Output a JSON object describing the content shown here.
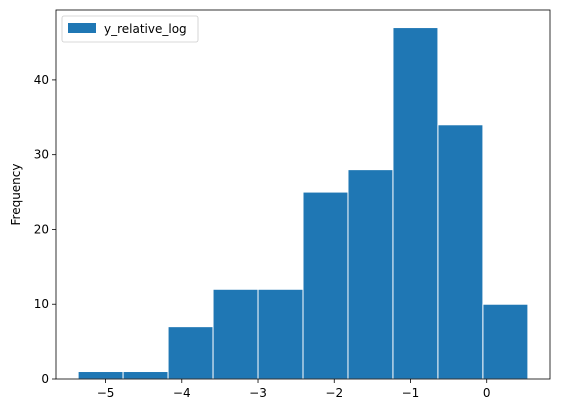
{
  "chart_data": {
    "type": "bar",
    "subtype": "histogram",
    "bins": [
      {
        "x0": -5.36,
        "x1": -4.77,
        "count": 1
      },
      {
        "x0": -4.77,
        "x1": -4.18,
        "count": 1
      },
      {
        "x0": -4.18,
        "x1": -3.59,
        "count": 7
      },
      {
        "x0": -3.59,
        "x1": -3.0,
        "count": 12
      },
      {
        "x0": -3.0,
        "x1": -2.41,
        "count": 12
      },
      {
        "x0": -2.41,
        "x1": -1.82,
        "count": 25
      },
      {
        "x0": -1.82,
        "x1": -1.23,
        "count": 28
      },
      {
        "x0": -1.23,
        "x1": -0.64,
        "count": 47
      },
      {
        "x0": -0.64,
        "x1": -0.05,
        "count": 34
      },
      {
        "x0": -0.05,
        "x1": 0.54,
        "count": 10
      }
    ],
    "series": [
      {
        "name": "y_relative_log"
      }
    ],
    "title": "",
    "xlabel": "",
    "ylabel": "Frequency",
    "xlim": [
      -5.65,
      0.83
    ],
    "ylim": [
      0,
      49.35
    ],
    "xticks": [
      -5,
      -4,
      -3,
      -2,
      -1,
      0
    ],
    "xtick_labels": [
      "−5",
      "−4",
      "−3",
      "−2",
      "−1",
      "0"
    ],
    "yticks": [
      0,
      10,
      20,
      30,
      40
    ],
    "ytick_labels": [
      "0",
      "10",
      "20",
      "30",
      "40"
    ],
    "legend_position": "top-left",
    "grid": false,
    "bar_color": "#1f77b4",
    "bar_edge_color": "#ffffff"
  }
}
